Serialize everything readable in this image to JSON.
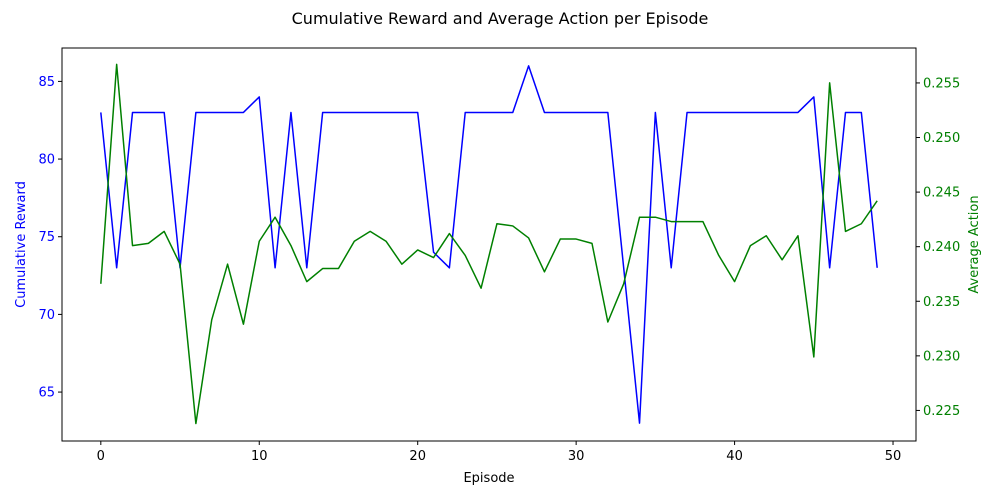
{
  "chart_data": {
    "type": "line",
    "title": "Cumulative Reward and Average Action per Episode",
    "xlabel": "Episode",
    "ylabel": "Cumulative Reward",
    "ylabel_right": "Average Action",
    "xlim": [
      -2.45,
      51.45
    ],
    "ylim": [
      61.85,
      87.15
    ],
    "ylim_right": [
      0.2222,
      0.2582
    ],
    "x_ticks": [
      0,
      10,
      20,
      30,
      40,
      50
    ],
    "y_ticks": [
      65,
      70,
      75,
      80,
      85
    ],
    "y_ticks_right": [
      0.225,
      0.23,
      0.235,
      0.24,
      0.245,
      0.25,
      0.255
    ],
    "grid": false,
    "x": [
      0,
      1,
      2,
      3,
      4,
      5,
      6,
      7,
      8,
      9,
      10,
      11,
      12,
      13,
      14,
      15,
      16,
      17,
      18,
      19,
      20,
      21,
      22,
      23,
      24,
      25,
      26,
      27,
      28,
      29,
      30,
      31,
      32,
      33,
      34,
      35,
      36,
      37,
      38,
      39,
      40,
      41,
      42,
      43,
      44,
      45,
      46,
      47,
      48,
      49
    ],
    "series": [
      {
        "axis": "left",
        "color": "#0000ff",
        "values": [
          83,
          73,
          83,
          83,
          83,
          73,
          83,
          83,
          83,
          83,
          84,
          73,
          83,
          73,
          83,
          83,
          83,
          83,
          83,
          83,
          83,
          74,
          73,
          83,
          83,
          83,
          83,
          86,
          83,
          83,
          83,
          83,
          83,
          73,
          63,
          83,
          73,
          83,
          83,
          83,
          83,
          83,
          83,
          83,
          83,
          84,
          73,
          83,
          83,
          73
        ]
      },
      {
        "axis": "right",
        "color": "#008000",
        "values": [
          0.2366,
          0.2567,
          0.2401,
          0.2403,
          0.2414,
          0.2384,
          0.2238,
          0.2333,
          0.2384,
          0.2329,
          0.2405,
          0.2427,
          0.2401,
          0.2368,
          0.238,
          0.238,
          0.2405,
          0.2414,
          0.2405,
          0.2384,
          0.2397,
          0.239,
          0.2412,
          0.2392,
          0.2362,
          0.2421,
          0.2419,
          0.2408,
          0.2377,
          0.2407,
          0.2407,
          0.2403,
          0.2331,
          0.2366,
          0.2427,
          0.2427,
          0.2423,
          0.2423,
          0.2423,
          0.2392,
          0.2368,
          0.2401,
          0.241,
          0.2388,
          0.241,
          0.2299,
          0.255,
          0.2414,
          0.2421,
          0.2442
        ]
      }
    ],
    "colors": {
      "left_axis": "#0000ff",
      "right_axis": "#008000",
      "frame": "#000000"
    }
  }
}
